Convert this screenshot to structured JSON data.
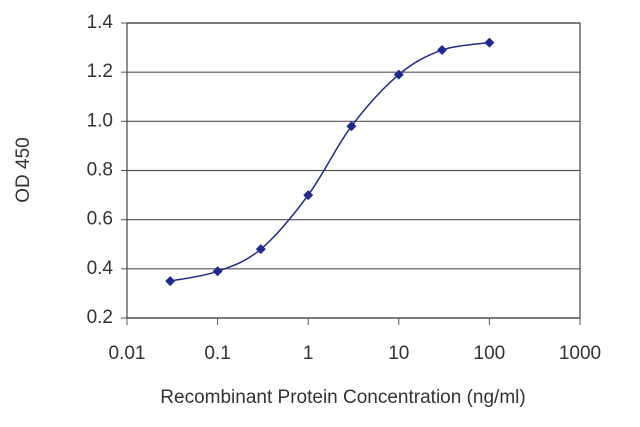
{
  "chart_data": {
    "type": "line",
    "x_label": "Recombinant Protein Concentration (ng/ml)",
    "y_label": "OD 450",
    "x": [
      0.03,
      0.1,
      0.3,
      1,
      3,
      10,
      30,
      100
    ],
    "series": [
      {
        "color": "#1f2a8c",
        "values": [
          0.35,
          0.39,
          0.48,
          0.7,
          0.98,
          1.19,
          1.29,
          1.32
        ]
      }
    ],
    "xscale": "log",
    "xlim": [
      0.01,
      1000
    ],
    "xticks": [
      0.01,
      0.1,
      1,
      10,
      100,
      1000
    ],
    "ylim": [
      0.2,
      1.4
    ],
    "yticks": [
      0.2,
      0.4,
      0.6,
      0.8,
      {
        "value": 1,
        "label": "1.0"
      },
      1.2,
      1.4
    ],
    "grid": true,
    "smooth": true
  }
}
